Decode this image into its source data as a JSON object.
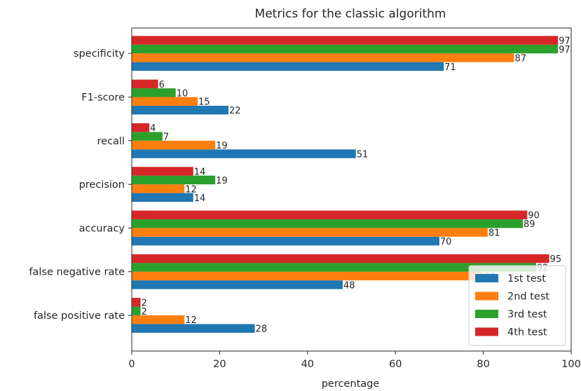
{
  "chart_data": {
    "type": "bar",
    "orientation": "horizontal",
    "title": "Metrics for the classic algorithm",
    "xlabel": "percentage",
    "ylabel": "",
    "xlim": [
      0,
      100
    ],
    "xticks": [
      "0",
      "20",
      "40",
      "60",
      "80",
      "100"
    ],
    "categories": [
      "false positive rate",
      "false negative rate",
      "accuracy",
      "precision",
      "recall",
      "F1-score",
      "specificity"
    ],
    "series": [
      {
        "name": "1st test",
        "color": "#1f77b4",
        "values": [
          28,
          48,
          70,
          14,
          51,
          22,
          71
        ]
      },
      {
        "name": "2nd test",
        "color": "#ff7f0e",
        "values": [
          12,
          80,
          81,
          12,
          19,
          15,
          87
        ]
      },
      {
        "name": "3rd test",
        "color": "#2ca02c",
        "values": [
          2,
          92,
          89,
          19,
          7,
          10,
          97
        ]
      },
      {
        "name": "4th test",
        "color": "#d62728",
        "values": [
          2,
          95,
          90,
          14,
          4,
          6,
          97
        ]
      }
    ],
    "legend_position": "lower-right",
    "grid": false
  }
}
